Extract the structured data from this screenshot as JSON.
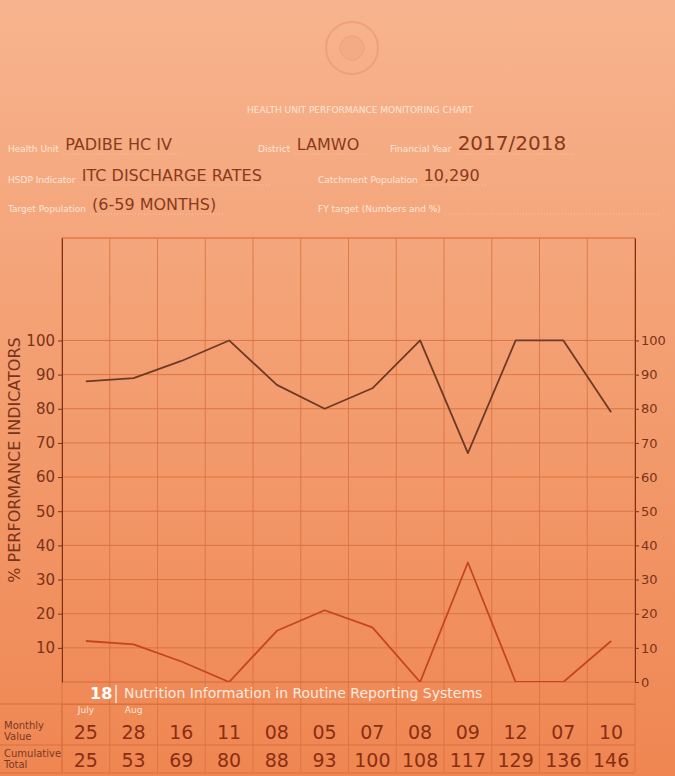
{
  "form": {
    "heading": "HEALTH UNIT PERFORMANCE MONITORING CHART",
    "fields": [
      {
        "label": "Health Unit",
        "value": "PADIBE HC IV"
      },
      {
        "label": "District",
        "value": "LAMWO"
      },
      {
        "label": "Financial Year",
        "value": "2017/2018"
      },
      {
        "label": "HSDP Indicator",
        "value": "ITC DISCHARGE RATES"
      },
      {
        "label": "Catchment Population",
        "value": "10,290"
      },
      {
        "label": "Target Population",
        "value": "(6-59 MONTHS)"
      },
      {
        "label": "FY target (Numbers and %)"
      }
    ]
  },
  "chart_data": {
    "type": "line",
    "ylabel": "% PERFORMANCE INDICATORS",
    "categories": [
      "July",
      "Aug",
      null,
      null,
      null,
      null,
      null,
      null,
      null,
      null,
      null,
      null
    ],
    "series": [
      {
        "color": "#6e3a24",
        "values": [
          88,
          89,
          94,
          100,
          87,
          80,
          86,
          100,
          67,
          100,
          100,
          79
        ]
      },
      {
        "color": "#c4461f",
        "values": [
          12,
          11,
          6,
          0,
          15,
          21,
          16,
          0,
          35,
          0,
          0,
          12
        ]
      }
    ],
    "ylim": [
      0,
      130
    ],
    "yticks": [
      10,
      20,
      30,
      40,
      50,
      60,
      70,
      80,
      90,
      100
    ],
    "y2lim": [
      0,
      130
    ],
    "y2ticks": [
      0,
      10,
      20,
      30,
      40,
      50,
      60,
      70,
      80,
      90,
      100
    ],
    "grid": true
  },
  "table": {
    "rows": [
      {
        "label": "Monthly Value",
        "values": [
          "25",
          "28",
          "16",
          "11",
          "08",
          "05",
          "07",
          "08",
          "09",
          "12",
          "07",
          "10"
        ]
      },
      {
        "label": "Cumulative Total",
        "values": [
          "25",
          "53",
          "69",
          "80",
          "88",
          "93",
          "100",
          "108",
          "117",
          "129",
          "136",
          "146"
        ]
      }
    ]
  },
  "page": {
    "number": "18",
    "title": "Nutrition Information in Routine Reporting Systems"
  }
}
